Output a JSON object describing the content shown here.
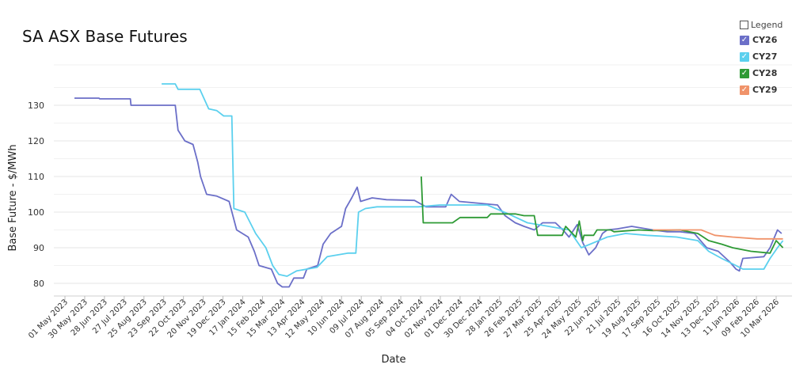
{
  "chart_data": {
    "type": "line",
    "title": "SA ASX Base Futures",
    "xlabel": "Date",
    "ylabel": "Base Future - $/MWh",
    "ylim": [
      75,
      140
    ],
    "yticks": [
      80,
      90,
      100,
      110,
      120,
      130
    ],
    "grid": true,
    "legend_position": "top-right",
    "legend_title": "Legend",
    "x_tick_labels": [
      "01 May 2023",
      "30 May 2023",
      "28 Jun 2023",
      "27 Jul 2023",
      "25 Aug 2023",
      "23 Sep 2023",
      "22 Oct 2023",
      "20 Nov 2023",
      "19 Dec 2023",
      "17 Jan 2024",
      "15 Feb 2024",
      "15 Mar 2024",
      "13 Apr 2024",
      "12 May 2024",
      "10 Jun 2024",
      "09 Jul 2024",
      "07 Aug 2024",
      "05 Sep 2024",
      "04 Oct 2024",
      "02 Nov 2024",
      "01 Dec 2024",
      "30 Dec 2024",
      "28 Jan 2025",
      "26 Feb 2025",
      "27 Mar 2025",
      "25 Apr 2025",
      "24 May 2025",
      "22 Jun 2025",
      "21 Jul 2025",
      "19 Aug 2025",
      "17 Sep 2025",
      "16 Oct 2025",
      "14 Nov 2025",
      "13 Dec 2025",
      "11 Jan 2026",
      "09 Feb 2026",
      "10 Mar 2026"
    ],
    "series": [
      {
        "name": "CY26",
        "color": "#6b6fc8",
        "points": [
          [
            "2023-05-15",
            132
          ],
          [
            "2023-06-20",
            132
          ],
          [
            "2023-06-21",
            131.8
          ],
          [
            "2023-08-05",
            131.8
          ],
          [
            "2023-08-06",
            130
          ],
          [
            "2023-10-10",
            130
          ],
          [
            "2023-10-14",
            123
          ],
          [
            "2023-10-24",
            120
          ],
          [
            "2023-11-05",
            119
          ],
          [
            "2023-11-12",
            114
          ],
          [
            "2023-11-16",
            110
          ],
          [
            "2023-11-25",
            105
          ],
          [
            "2023-12-10",
            104.5
          ],
          [
            "2023-12-28",
            103
          ],
          [
            "2024-01-08",
            95
          ],
          [
            "2024-01-25",
            93
          ],
          [
            "2024-02-03",
            89
          ],
          [
            "2024-02-10",
            85
          ],
          [
            "2024-02-28",
            84
          ],
          [
            "2024-03-08",
            80
          ],
          [
            "2024-03-15",
            79
          ],
          [
            "2024-03-25",
            79
          ],
          [
            "2024-04-01",
            81.5
          ],
          [
            "2024-04-15",
            81.5
          ],
          [
            "2024-04-20",
            84
          ],
          [
            "2024-05-06",
            85
          ],
          [
            "2024-05-14",
            91
          ],
          [
            "2024-05-25",
            94
          ],
          [
            "2024-06-10",
            96
          ],
          [
            "2024-06-16",
            101
          ],
          [
            "2024-06-25",
            104
          ],
          [
            "2024-07-03",
            107
          ],
          [
            "2024-07-08",
            103
          ],
          [
            "2024-07-25",
            104
          ],
          [
            "2024-08-15",
            103.5
          ],
          [
            "2024-09-25",
            103.3
          ],
          [
            "2024-10-12",
            101.5
          ],
          [
            "2024-11-10",
            101.5
          ],
          [
            "2024-11-18",
            105
          ],
          [
            "2024-11-30",
            103
          ],
          [
            "2025-01-25",
            102
          ],
          [
            "2025-02-05",
            99
          ],
          [
            "2025-02-20",
            97
          ],
          [
            "2025-03-05",
            96
          ],
          [
            "2025-03-20",
            95
          ],
          [
            "2025-04-01",
            97
          ],
          [
            "2025-04-20",
            97
          ],
          [
            "2025-05-01",
            95
          ],
          [
            "2025-05-10",
            93
          ],
          [
            "2025-05-22",
            96.5
          ],
          [
            "2025-05-30",
            91.5
          ],
          [
            "2025-06-08",
            88
          ],
          [
            "2025-06-18",
            90
          ],
          [
            "2025-06-28",
            94
          ],
          [
            "2025-07-05",
            95
          ],
          [
            "2025-07-20",
            95.3
          ],
          [
            "2025-08-10",
            96
          ],
          [
            "2025-09-10",
            95
          ],
          [
            "2025-10-01",
            94.5
          ],
          [
            "2025-10-20",
            94.5
          ],
          [
            "2025-11-10",
            94
          ],
          [
            "2025-11-28",
            90
          ],
          [
            "2025-12-15",
            89
          ],
          [
            "2026-01-01",
            86
          ],
          [
            "2026-01-10",
            84
          ],
          [
            "2026-01-15",
            83.5
          ],
          [
            "2026-01-20",
            87
          ],
          [
            "2026-02-20",
            87.5
          ],
          [
            "2026-03-01",
            90
          ],
          [
            "2026-03-12",
            95
          ],
          [
            "2026-03-18",
            94
          ]
        ]
      },
      {
        "name": "CY27",
        "color": "#5bd0ee",
        "points": [
          [
            "2023-09-20",
            136
          ],
          [
            "2023-10-10",
            136
          ],
          [
            "2023-10-14",
            134.5
          ],
          [
            "2023-11-15",
            134.5
          ],
          [
            "2023-11-28",
            129
          ],
          [
            "2023-12-10",
            128.5
          ],
          [
            "2023-12-20",
            127
          ],
          [
            "2024-01-01",
            127
          ],
          [
            "2024-01-04",
            101
          ],
          [
            "2024-01-20",
            100
          ],
          [
            "2024-02-05",
            94
          ],
          [
            "2024-02-20",
            90
          ],
          [
            "2024-03-01",
            85
          ],
          [
            "2024-03-10",
            82.5
          ],
          [
            "2024-03-22",
            82
          ],
          [
            "2024-04-05",
            83.5
          ],
          [
            "2024-05-05",
            84.5
          ],
          [
            "2024-05-20",
            87.5
          ],
          [
            "2024-06-20",
            88.5
          ],
          [
            "2024-07-01",
            88.5
          ],
          [
            "2024-07-05",
            100
          ],
          [
            "2024-07-15",
            101
          ],
          [
            "2024-08-01",
            101.5
          ],
          [
            "2024-10-01",
            101.5
          ],
          [
            "2024-11-01",
            102
          ],
          [
            "2025-01-10",
            102
          ],
          [
            "2025-02-10",
            99.5
          ],
          [
            "2025-03-10",
            97
          ],
          [
            "2025-04-10",
            96
          ],
          [
            "2025-05-10",
            95
          ],
          [
            "2025-05-28",
            90
          ],
          [
            "2025-06-10",
            91
          ],
          [
            "2025-07-05",
            93
          ],
          [
            "2025-08-01",
            94
          ],
          [
            "2025-09-01",
            93.5
          ],
          [
            "2025-10-15",
            93
          ],
          [
            "2025-11-15",
            92
          ],
          [
            "2025-12-01",
            89
          ],
          [
            "2025-12-20",
            87
          ],
          [
            "2026-01-10",
            85
          ],
          [
            "2026-01-20",
            84
          ],
          [
            "2026-02-10",
            84
          ],
          [
            "2026-02-20",
            84
          ],
          [
            "2026-03-01",
            87
          ],
          [
            "2026-03-12",
            90
          ],
          [
            "2026-03-20",
            92
          ]
        ]
      },
      {
        "name": "CY28",
        "color": "#2e9a35",
        "points": [
          [
            "2024-10-05",
            110
          ],
          [
            "2024-10-08",
            97
          ],
          [
            "2024-11-20",
            97
          ],
          [
            "2024-12-01",
            98.5
          ],
          [
            "2025-01-10",
            98.5
          ],
          [
            "2025-01-15",
            99.5
          ],
          [
            "2025-02-20",
            99.5
          ],
          [
            "2025-03-05",
            99
          ],
          [
            "2025-03-20",
            99
          ],
          [
            "2025-03-25",
            93.5
          ],
          [
            "2025-04-30",
            93.5
          ],
          [
            "2025-05-05",
            96
          ],
          [
            "2025-05-20",
            93
          ],
          [
            "2025-05-25",
            97.5
          ],
          [
            "2025-05-30",
            92
          ],
          [
            "2025-06-01",
            93.5
          ],
          [
            "2025-06-15",
            93.5
          ],
          [
            "2025-06-20",
            95
          ],
          [
            "2025-07-10",
            95
          ],
          [
            "2025-07-15",
            94.5
          ],
          [
            "2025-08-20",
            95
          ],
          [
            "2025-09-10",
            94.8
          ],
          [
            "2025-10-20",
            95
          ],
          [
            "2025-11-15",
            94
          ],
          [
            "2025-12-01",
            92
          ],
          [
            "2025-12-20",
            91
          ],
          [
            "2026-01-05",
            90
          ],
          [
            "2026-02-01",
            89
          ],
          [
            "2026-03-01",
            88.5
          ],
          [
            "2026-03-10",
            92
          ],
          [
            "2026-03-20",
            90
          ]
        ]
      },
      {
        "name": "CY29",
        "color": "#f0936a",
        "points": [
          [
            "2025-09-10",
            95
          ],
          [
            "2025-11-20",
            95
          ],
          [
            "2025-12-10",
            93.5
          ],
          [
            "2026-01-05",
            93
          ],
          [
            "2026-02-10",
            92.5
          ],
          [
            "2026-03-01",
            92.5
          ],
          [
            "2026-03-20",
            92.5
          ]
        ]
      }
    ]
  }
}
